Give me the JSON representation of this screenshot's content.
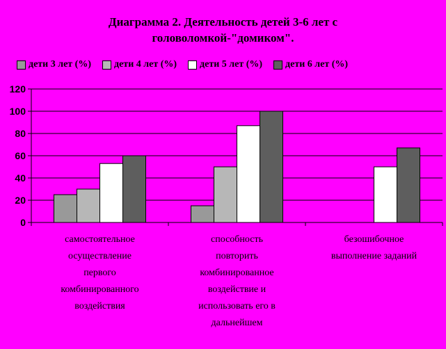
{
  "chart_data": {
    "type": "bar",
    "title": "Диаграмма 2. Деятельность детей 3-6 лет с головоломкой-\"домиком\".",
    "title_lines": [
      "Диаграмма 2. Деятельность детей 3-6 лет с",
      "головоломкой-\"домиком\"."
    ],
    "categories": [
      "самостоятельное осуществление первого комбинированного воздействия",
      "способность повторить комбинированное воздействие и использовать его в дальнейшем",
      "безошибочное выполнение заданий"
    ],
    "category_lines": [
      [
        "самостоятельное",
        "осуществление",
        "первого",
        "комбинированного",
        "воздействия"
      ],
      [
        "способность",
        "повторить",
        "комбинированное",
        "воздействие и",
        "использовать его в",
        "дальнейшем"
      ],
      [
        "безошибочное",
        "выполнение заданий"
      ]
    ],
    "series": [
      {
        "name": "дети 3 лет (%)",
        "color": "#999999",
        "values": [
          25,
          15,
          0
        ]
      },
      {
        "name": "дети 4 лет (%)",
        "color": "#b7b7b7",
        "values": [
          30,
          50,
          0
        ]
      },
      {
        "name": "дети 5 лет (%)",
        "color": "#ffffff",
        "values": [
          53,
          87,
          50
        ]
      },
      {
        "name": "дети 6 лет (%)",
        "color": "#5e5e5e",
        "values": [
          60,
          100,
          67
        ]
      }
    ],
    "ylim": [
      0,
      120
    ],
    "yticks": [
      0,
      20,
      40,
      60,
      80,
      100,
      120
    ],
    "grid": true,
    "legend_position": "top",
    "background_color": "#ff00ff"
  }
}
